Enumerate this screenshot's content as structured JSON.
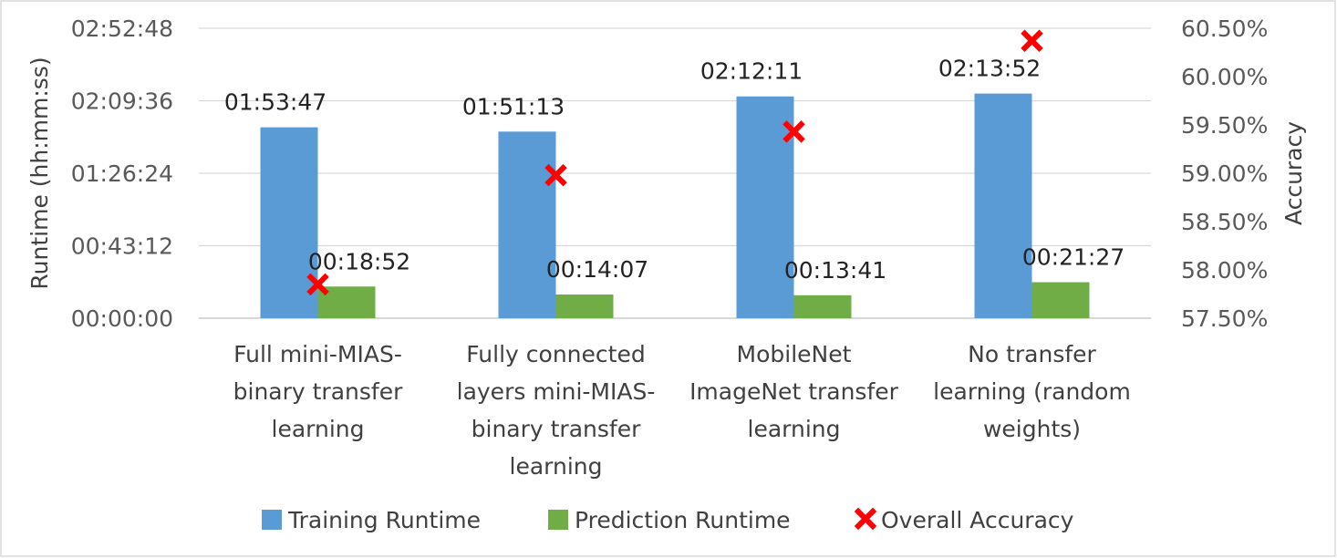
{
  "chart_data": {
    "type": "bar",
    "categories": [
      [
        "Full mini-MIAS-",
        "binary transfer",
        "learning"
      ],
      [
        "Fully connected",
        "layers mini-MIAS-",
        "binary transfer",
        "learning"
      ],
      [
        "MobileNet",
        "ImageNet transfer",
        "learning"
      ],
      [
        "No transfer",
        "learning (random",
        "weights)"
      ]
    ],
    "series": [
      {
        "name": "Training Runtime",
        "axis": "left",
        "color": "#5B9BD5",
        "values_seconds": [
          6827,
          6673,
          7931,
          8032
        ],
        "labels": [
          "01:53:47",
          "01:51:13",
          "02:12:11",
          "02:13:52"
        ]
      },
      {
        "name": "Prediction Runtime",
        "axis": "left",
        "color": "#70AD47",
        "values_seconds": [
          1132,
          847,
          821,
          1287
        ],
        "labels": [
          "00:18:52",
          "00:14:07",
          "00:13:41",
          "00:21:27"
        ]
      },
      {
        "name": "Overall Accuracy",
        "axis": "right",
        "type": "scatter",
        "marker": "x",
        "color": "#FF0000",
        "values_percent": [
          57.85,
          58.98,
          59.43,
          60.37
        ]
      }
    ],
    "ylabel": "Runtime (hh:mm:ss)",
    "ylabel_right": "Accuracy",
    "ylim_seconds": [
      0,
      10368
    ],
    "yticks_left": [
      "00:00:00",
      "00:43:12",
      "01:26:24",
      "02:09:36",
      "02:52:48"
    ],
    "ylim_right_percent": [
      57.5,
      60.5
    ],
    "yticks_right": [
      "57.50%",
      "58.00%",
      "58.50%",
      "59.00%",
      "59.50%",
      "60.00%",
      "60.50%"
    ],
    "grid": true,
    "legend_position": "bottom"
  }
}
